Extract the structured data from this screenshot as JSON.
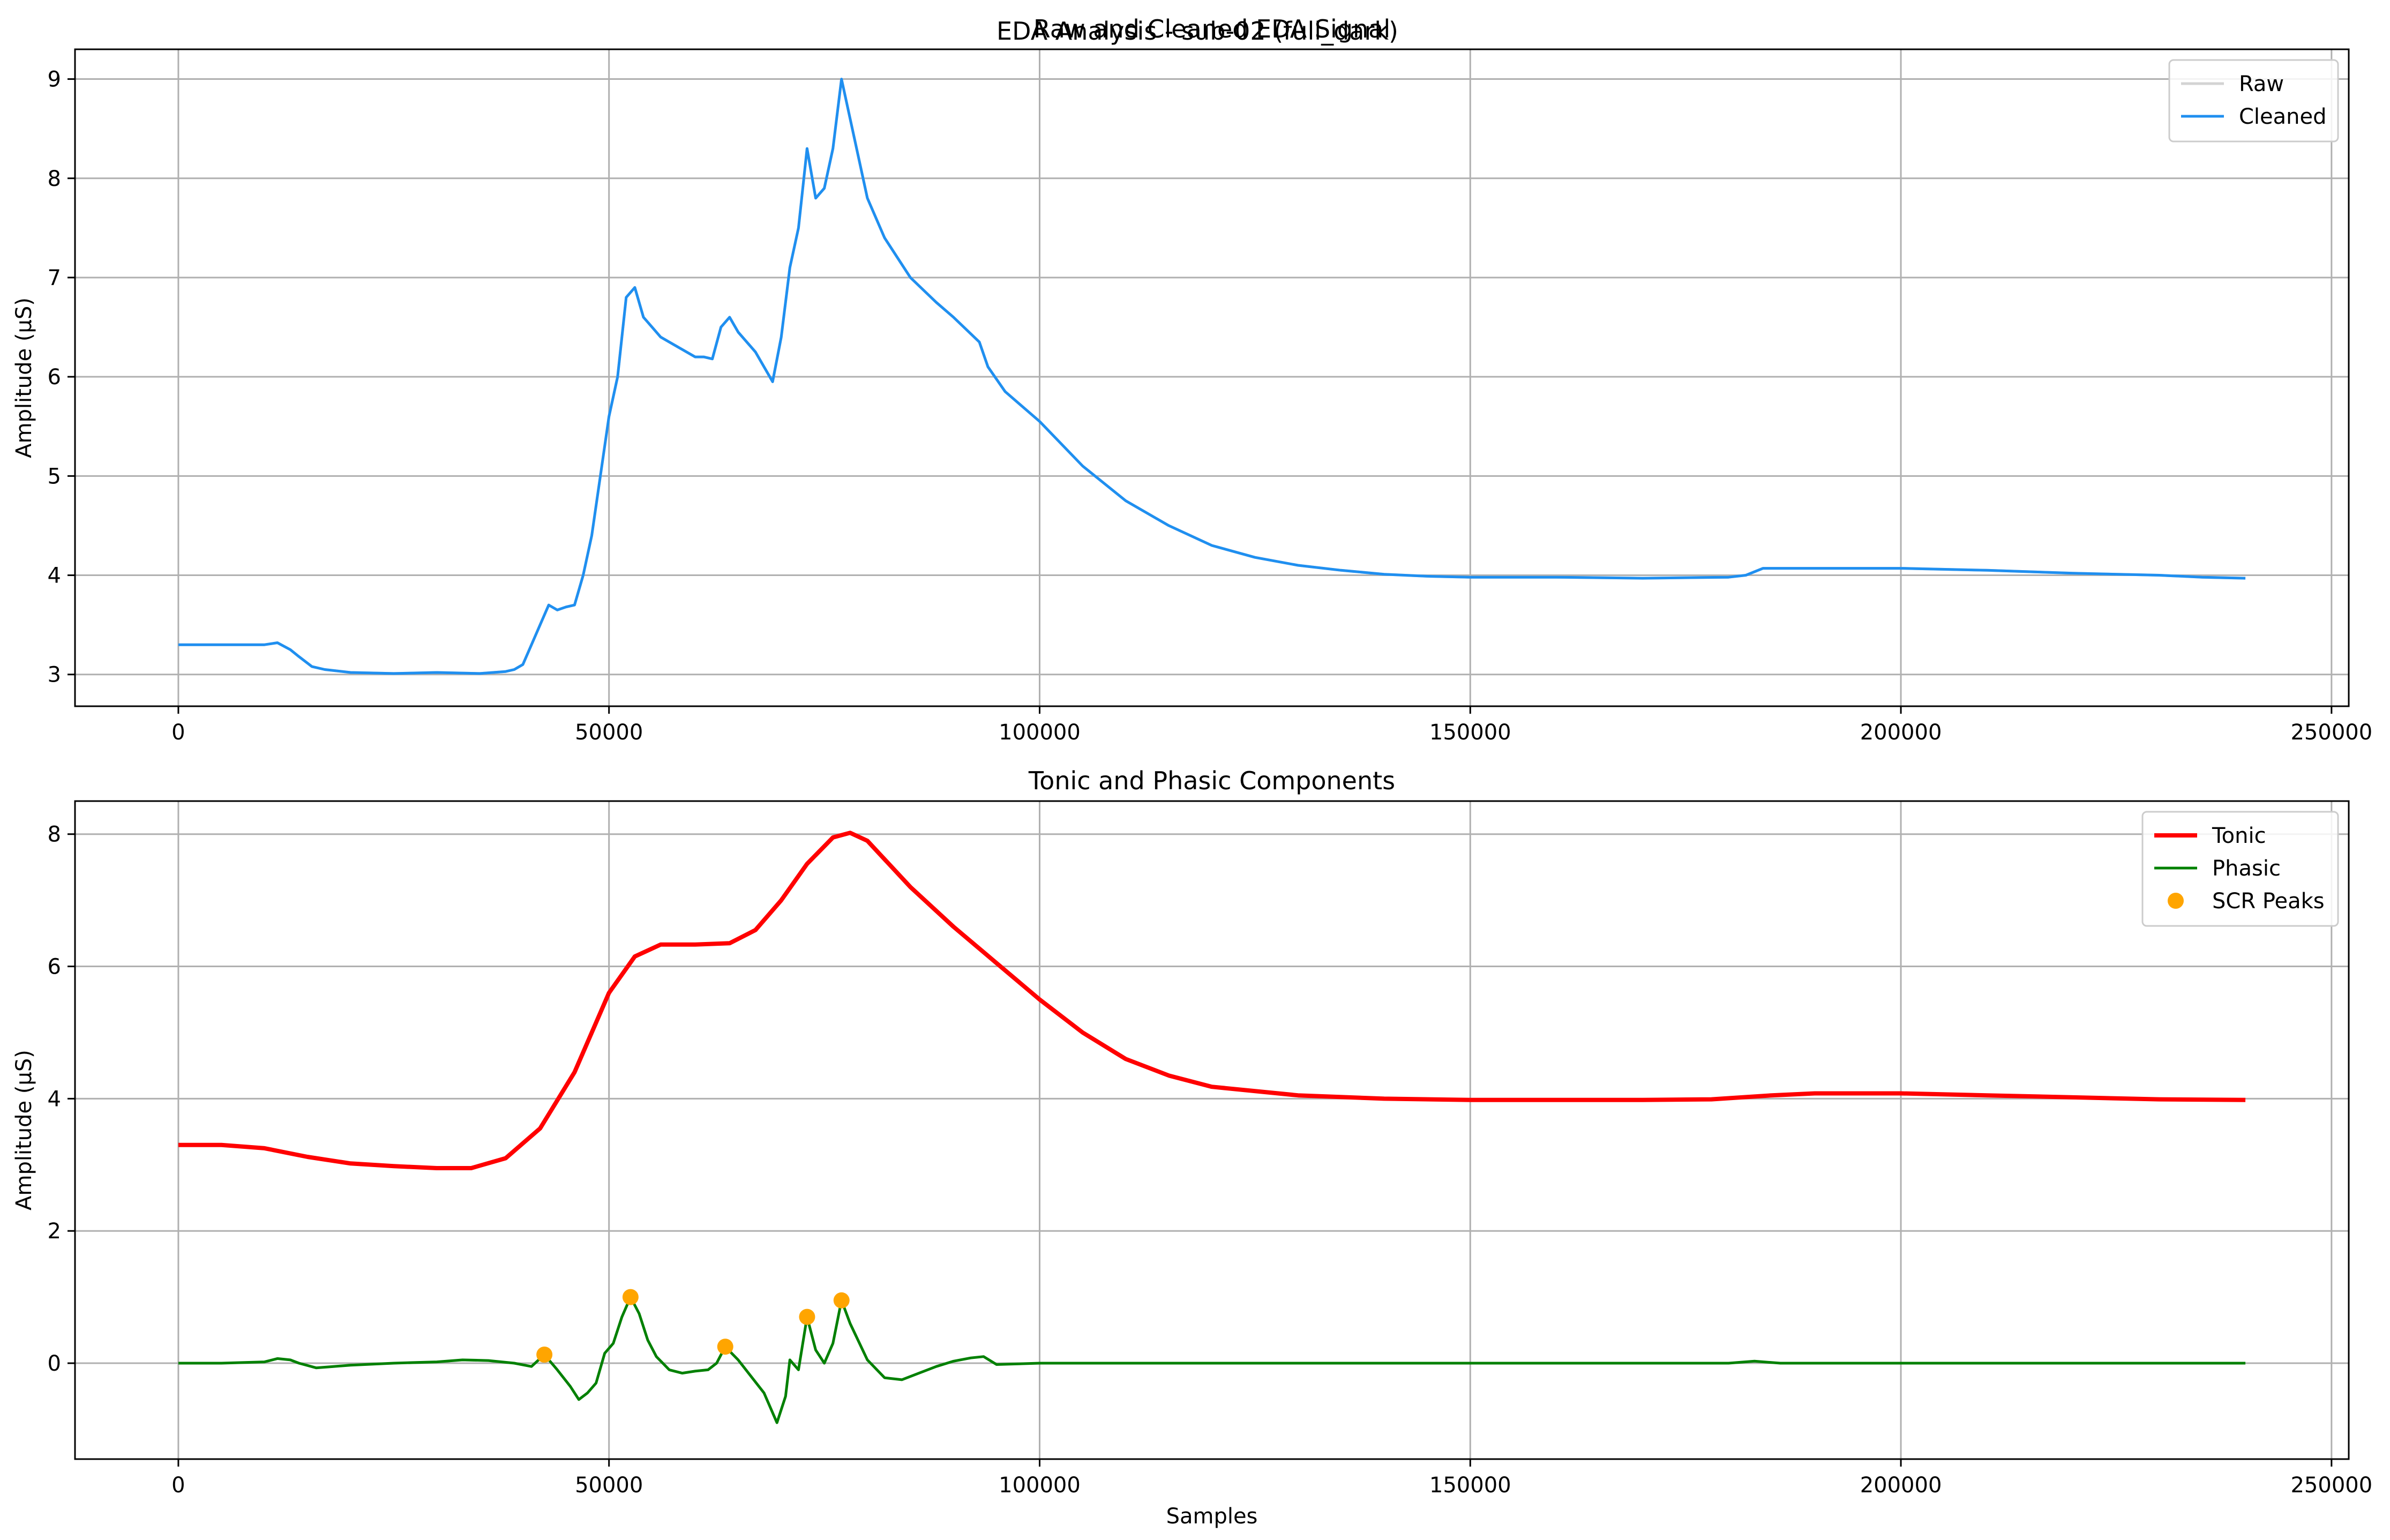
{
  "figure": {
    "suptitle": "EDA Analysis - sub-02 (full_dark)"
  },
  "chart_data": [
    {
      "type": "line",
      "title": "Raw and Cleaned EDA Signal",
      "xlabel": "",
      "ylabel": "Amplitude (µS)",
      "xlim": [
        -12000,
        252000
      ],
      "ylim": [
        2.68,
        9.3
      ],
      "xticks": [
        0,
        50000,
        100000,
        150000,
        200000,
        250000
      ],
      "xtick_labels": [
        "0",
        "50000",
        "100000",
        "150000",
        "200000",
        "250000"
      ],
      "yticks": [
        3,
        4,
        5,
        6,
        7,
        8,
        9
      ],
      "ytick_labels": [
        "3",
        "4",
        "5",
        "6",
        "7",
        "8",
        "9"
      ],
      "grid": true,
      "legend_position": "top-right",
      "series": [
        {
          "name": "Raw",
          "color": "#d3d3d3",
          "x": [
            0,
            10000,
            11500,
            13000,
            14000,
            15500,
            17000,
            20000,
            25000,
            30000,
            35000,
            38000,
            39000,
            40000,
            41000,
            42000,
            43000,
            44000,
            45000,
            46000,
            47000,
            48000,
            49000,
            50000,
            51000,
            52000,
            53000,
            54000,
            55000,
            56000,
            57000,
            58000,
            59000,
            60000,
            61000,
            62000,
            63000,
            64000,
            65000,
            66000,
            67000,
            68000,
            69000,
            70000,
            71000,
            72000,
            73000,
            74000,
            75000,
            76000,
            77000,
            78000,
            79000,
            80000,
            82000,
            85000,
            88000,
            90000,
            93000,
            94000,
            96000,
            100000,
            105000,
            110000,
            115000,
            120000,
            125000,
            130000,
            135000,
            140000,
            145000,
            150000,
            160000,
            170000,
            180000,
            182000,
            184000,
            190000,
            200000,
            210000,
            220000,
            230000,
            235000,
            240000
          ],
          "y": [
            3.3,
            3.3,
            3.32,
            3.25,
            3.18,
            3.08,
            3.05,
            3.02,
            3.01,
            3.02,
            3.01,
            3.03,
            3.05,
            3.1,
            3.3,
            3.5,
            3.7,
            3.65,
            3.68,
            3.7,
            4.0,
            4.4,
            5.0,
            5.6,
            6.0,
            6.8,
            6.9,
            6.6,
            6.5,
            6.4,
            6.35,
            6.3,
            6.25,
            6.2,
            6.2,
            6.18,
            6.5,
            6.6,
            6.45,
            6.35,
            6.25,
            6.1,
            5.95,
            6.4,
            7.1,
            7.5,
            8.3,
            7.8,
            7.9,
            8.3,
            9.0,
            8.6,
            8.2,
            7.8,
            7.4,
            7.0,
            6.75,
            6.6,
            6.35,
            6.1,
            5.85,
            5.55,
            5.1,
            4.75,
            4.5,
            4.3,
            4.18,
            4.1,
            4.05,
            4.01,
            3.99,
            3.98,
            3.98,
            3.97,
            3.98,
            4.0,
            4.07,
            4.07,
            4.07,
            4.05,
            4.02,
            4.0,
            3.98,
            3.97
          ]
        },
        {
          "name": "Cleaned",
          "color": "#1f8ff0",
          "x": [
            0,
            10000,
            11500,
            13000,
            14000,
            15500,
            17000,
            20000,
            25000,
            30000,
            35000,
            38000,
            39000,
            40000,
            41000,
            42000,
            43000,
            44000,
            45000,
            46000,
            47000,
            48000,
            49000,
            50000,
            51000,
            52000,
            53000,
            54000,
            55000,
            56000,
            57000,
            58000,
            59000,
            60000,
            61000,
            62000,
            63000,
            64000,
            65000,
            66000,
            67000,
            68000,
            69000,
            70000,
            71000,
            72000,
            73000,
            74000,
            75000,
            76000,
            77000,
            78000,
            79000,
            80000,
            82000,
            85000,
            88000,
            90000,
            93000,
            94000,
            96000,
            100000,
            105000,
            110000,
            115000,
            120000,
            125000,
            130000,
            135000,
            140000,
            145000,
            150000,
            160000,
            170000,
            180000,
            182000,
            184000,
            190000,
            200000,
            210000,
            220000,
            230000,
            235000,
            240000
          ],
          "y": [
            3.3,
            3.3,
            3.32,
            3.25,
            3.18,
            3.08,
            3.05,
            3.02,
            3.01,
            3.02,
            3.01,
            3.03,
            3.05,
            3.1,
            3.3,
            3.5,
            3.7,
            3.65,
            3.68,
            3.7,
            4.0,
            4.4,
            5.0,
            5.6,
            6.0,
            6.8,
            6.9,
            6.6,
            6.5,
            6.4,
            6.35,
            6.3,
            6.25,
            6.2,
            6.2,
            6.18,
            6.5,
            6.6,
            6.45,
            6.35,
            6.25,
            6.1,
            5.95,
            6.4,
            7.1,
            7.5,
            8.3,
            7.8,
            7.9,
            8.3,
            9.0,
            8.6,
            8.2,
            7.8,
            7.4,
            7.0,
            6.75,
            6.6,
            6.35,
            6.1,
            5.85,
            5.55,
            5.1,
            4.75,
            4.5,
            4.3,
            4.18,
            4.1,
            4.05,
            4.01,
            3.99,
            3.98,
            3.98,
            3.97,
            3.98,
            4.0,
            4.07,
            4.07,
            4.07,
            4.05,
            4.02,
            4.0,
            3.98,
            3.97
          ]
        }
      ]
    },
    {
      "type": "line",
      "title": "Tonic and Phasic Components",
      "xlabel": "Samples",
      "ylabel": "Amplitude (µS)",
      "xlim": [
        -12000,
        252000
      ],
      "ylim": [
        -1.45,
        8.5
      ],
      "xticks": [
        0,
        50000,
        100000,
        150000,
        200000,
        250000
      ],
      "xtick_labels": [
        "0",
        "50000",
        "100000",
        "150000",
        "200000",
        "250000"
      ],
      "yticks": [
        0,
        2,
        4,
        6,
        8
      ],
      "ytick_labels": [
        "0",
        "2",
        "4",
        "6",
        "8"
      ],
      "grid": true,
      "legend_position": "top-right",
      "series": [
        {
          "name": "Tonic",
          "color": "#ff0000",
          "x": [
            0,
            5000,
            10000,
            15000,
            20000,
            25000,
            30000,
            34000,
            38000,
            42000,
            46000,
            50000,
            53000,
            56000,
            60000,
            64000,
            67000,
            70000,
            73000,
            76000,
            78000,
            80000,
            85000,
            90000,
            95000,
            100000,
            105000,
            110000,
            115000,
            120000,
            130000,
            140000,
            150000,
            160000,
            170000,
            178000,
            185000,
            190000,
            200000,
            210000,
            220000,
            230000,
            240000
          ],
          "y": [
            3.3,
            3.3,
            3.25,
            3.12,
            3.02,
            2.98,
            2.95,
            2.95,
            3.1,
            3.55,
            4.4,
            5.6,
            6.15,
            6.33,
            6.33,
            6.35,
            6.55,
            7.0,
            7.55,
            7.95,
            8.02,
            7.9,
            7.2,
            6.6,
            6.05,
            5.5,
            5.0,
            4.6,
            4.35,
            4.18,
            4.05,
            4.0,
            3.98,
            3.98,
            3.98,
            3.99,
            4.05,
            4.08,
            4.08,
            4.05,
            4.02,
            3.99,
            3.98
          ]
        },
        {
          "name": "Phasic",
          "color": "#008000",
          "x": [
            0,
            5000,
            10000,
            11500,
            13000,
            14000,
            16000,
            18000,
            20000,
            25000,
            30000,
            33000,
            36000,
            39000,
            41000,
            42500,
            44000,
            45500,
            46500,
            47500,
            48500,
            49500,
            50500,
            51500,
            52500,
            53500,
            54500,
            55500,
            57000,
            58500,
            60000,
            61500,
            62500,
            63500,
            65000,
            66500,
            68000,
            69500,
            70500,
            71000,
            72000,
            73000,
            74000,
            75000,
            76000,
            77000,
            78000,
            80000,
            82000,
            84000,
            86000,
            88000,
            90000,
            92000,
            93500,
            95000,
            100000,
            110000,
            120000,
            130000,
            140000,
            150000,
            160000,
            170000,
            180000,
            183000,
            186000,
            200000,
            210000,
            220000,
            230000,
            240000
          ],
          "y": [
            0.0,
            0.0,
            0.02,
            0.07,
            0.05,
            0.0,
            -0.07,
            -0.05,
            -0.03,
            0.0,
            0.02,
            0.05,
            0.04,
            0.0,
            -0.05,
            0.13,
            -0.1,
            -0.35,
            -0.55,
            -0.45,
            -0.3,
            0.15,
            0.3,
            0.7,
            1.0,
            0.75,
            0.35,
            0.1,
            -0.1,
            -0.15,
            -0.12,
            -0.1,
            0.0,
            0.25,
            0.05,
            -0.2,
            -0.45,
            -0.9,
            -0.5,
            0.05,
            -0.1,
            0.7,
            0.2,
            0.0,
            0.3,
            0.95,
            0.6,
            0.05,
            -0.22,
            -0.25,
            -0.15,
            -0.05,
            0.03,
            0.08,
            0.1,
            -0.02,
            0.0,
            0.0,
            0.0,
            0.0,
            0.0,
            0.0,
            0.0,
            0.0,
            0.0,
            0.03,
            0.0,
            0.0,
            0.0,
            0.0,
            0.0,
            0.0
          ]
        },
        {
          "name": "SCR Peaks",
          "color": "#ffa500",
          "marker": "circle",
          "x": [
            42500,
            52500,
            63500,
            73000,
            77000
          ],
          "y": [
            0.13,
            1.0,
            0.25,
            0.7,
            0.95
          ]
        }
      ]
    }
  ]
}
